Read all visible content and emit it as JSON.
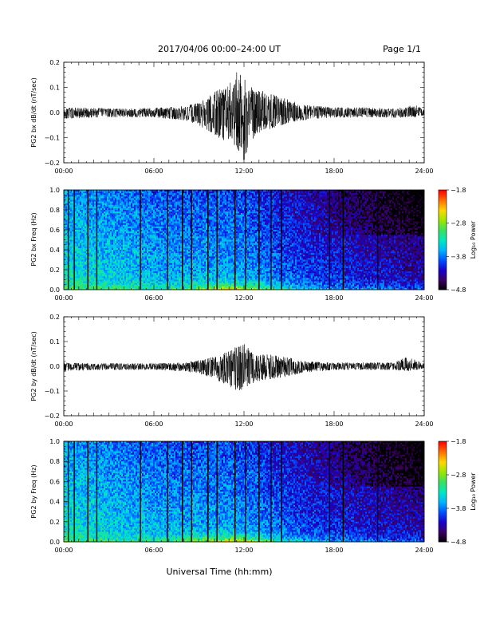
{
  "header": {
    "title": "2017/04/06  00:00–24:00 UT",
    "page": "Page 1/1"
  },
  "footer": {
    "xlabel": "Universal Time (hh:mm)"
  },
  "colorbar": {
    "label": "Log₁₀ Power",
    "ticks": [
      "−1.8",
      "−2.8",
      "−3.8",
      "−4.8"
    ],
    "range": [
      -4.8,
      -1.8
    ],
    "colors": [
      "#000000",
      "#3a0060",
      "#1a00c8",
      "#0050ff",
      "#00b4ff",
      "#00e8c0",
      "#3ce060",
      "#9ae800",
      "#ffd800",
      "#ff7000",
      "#ff0000"
    ]
  },
  "chart_data": [
    {
      "type": "line",
      "panel": "bx-dbdt",
      "ylabel": "PG2 bx dB/dt (nT/sec)",
      "x_range_hours": [
        0,
        24
      ],
      "xticks": [
        "00:00",
        "06:00",
        "12:00",
        "18:00",
        "24:00"
      ],
      "ylim": [
        -0.2,
        0.2
      ],
      "yticks": [
        "0.2",
        "0.1",
        "0.0",
        "−0.1",
        "−0.2"
      ],
      "envelope": {
        "hour": [
          0,
          2,
          4,
          6,
          8,
          9,
          10,
          11,
          11.5,
          12,
          12.5,
          13,
          14,
          15,
          16,
          18,
          20,
          22,
          23.4,
          24
        ],
        "upper": [
          0.02,
          0.018,
          0.015,
          0.018,
          0.025,
          0.04,
          0.08,
          0.11,
          0.16,
          0.14,
          0.1,
          0.09,
          0.07,
          0.05,
          0.03,
          0.02,
          0.02,
          0.015,
          0.03,
          0.01
        ],
        "lower": [
          -0.025,
          -0.02,
          -0.018,
          -0.02,
          -0.03,
          -0.05,
          -0.09,
          -0.12,
          -0.14,
          -0.19,
          -0.11,
          -0.08,
          -0.06,
          -0.04,
          -0.03,
          -0.02,
          -0.02,
          -0.02,
          -0.02,
          -0.01
        ]
      }
    },
    {
      "type": "heatmap",
      "panel": "bx-freq",
      "ylabel": "PG2 bx Freq (Hz)",
      "x_range_hours": [
        0,
        24
      ],
      "xticks": [
        "00:00",
        "06:00",
        "12:00",
        "18:00",
        "24:00"
      ],
      "ylim": [
        0,
        1.0
      ],
      "yticks": [
        "1.0",
        "0.8",
        "0.6",
        "0.4",
        "0.2",
        "0.0"
      ],
      "gap_lines_hours": [
        0.3,
        0.7,
        1.6,
        2.2,
        5.1,
        6.9,
        7.9,
        8.5,
        9.6,
        10.2,
        11.4,
        12.1,
        13.0,
        13.8,
        14.5,
        17.7,
        18.6,
        20.9
      ]
    },
    {
      "type": "line",
      "panel": "by-dbdt",
      "ylabel": "PG2 by dB/dt (nT/sec)",
      "x_range_hours": [
        0,
        24
      ],
      "xticks": [
        "00:00",
        "06:00",
        "12:00",
        "18:00",
        "24:00"
      ],
      "ylim": [
        -0.2,
        0.2
      ],
      "yticks": [
        "0.2",
        "0.1",
        "0.0",
        "−0.1",
        "−0.2"
      ],
      "envelope": {
        "hour": [
          0,
          2,
          4,
          6,
          8,
          9,
          10,
          11,
          11.5,
          12,
          12.5,
          13,
          14,
          15,
          16,
          18,
          20,
          22,
          22.9,
          24
        ],
        "upper": [
          0.015,
          0.012,
          0.012,
          0.012,
          0.015,
          0.025,
          0.04,
          0.06,
          0.08,
          0.09,
          0.06,
          0.05,
          0.045,
          0.035,
          0.02,
          0.015,
          0.015,
          0.015,
          0.04,
          0.01
        ],
        "lower": [
          -0.02,
          -0.015,
          -0.015,
          -0.015,
          -0.02,
          -0.03,
          -0.05,
          -0.08,
          -0.1,
          -0.1,
          -0.07,
          -0.06,
          -0.05,
          -0.04,
          -0.025,
          -0.015,
          -0.015,
          -0.015,
          -0.02,
          -0.01
        ]
      }
    },
    {
      "type": "heatmap",
      "panel": "by-freq",
      "ylabel": "PG2 by Freq (Hz)",
      "x_range_hours": [
        0,
        24
      ],
      "xticks": [
        "00:00",
        "06:00",
        "12:00",
        "18:00",
        "24:00"
      ],
      "ylim": [
        0,
        1.0
      ],
      "yticks": [
        "1.0",
        "0.8",
        "0.6",
        "0.4",
        "0.2",
        "0.0"
      ],
      "gap_lines_hours": [
        0.3,
        0.7,
        1.6,
        2.2,
        5.1,
        6.9,
        7.9,
        8.5,
        9.6,
        10.2,
        11.4,
        12.1,
        13.0,
        13.8,
        14.5,
        17.7,
        18.6,
        20.9
      ]
    }
  ]
}
